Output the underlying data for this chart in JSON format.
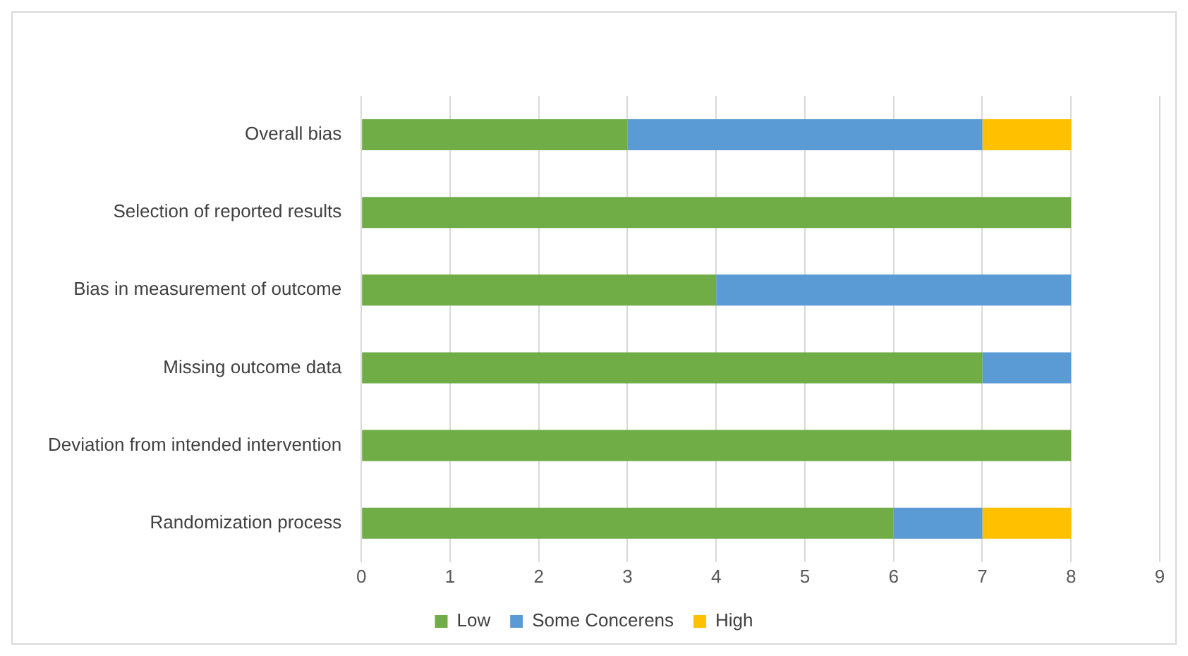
{
  "chart_data": {
    "type": "bar",
    "orientation": "horizontal",
    "stacked": true,
    "categories": [
      "Overall bias",
      "Selection of reported results",
      "Bias in measurement of outcome",
      "Missing outcome data",
      "Deviation from intended intervention",
      "Randomization process"
    ],
    "series": [
      {
        "name": "Low",
        "color": "#70ad47",
        "values": [
          3,
          8,
          4,
          7,
          8,
          6
        ]
      },
      {
        "name": "Some Concerens",
        "color": "#5b9bd5",
        "values": [
          4,
          0,
          4,
          1,
          0,
          1
        ]
      },
      {
        "name": "High",
        "color": "#ffc000",
        "values": [
          1,
          0,
          0,
          0,
          0,
          1
        ]
      }
    ],
    "xlim": [
      0,
      9
    ],
    "xticks": [
      0,
      1,
      2,
      3,
      4,
      5,
      6,
      7,
      8,
      9
    ],
    "grid": "x",
    "legend": "bottom"
  }
}
